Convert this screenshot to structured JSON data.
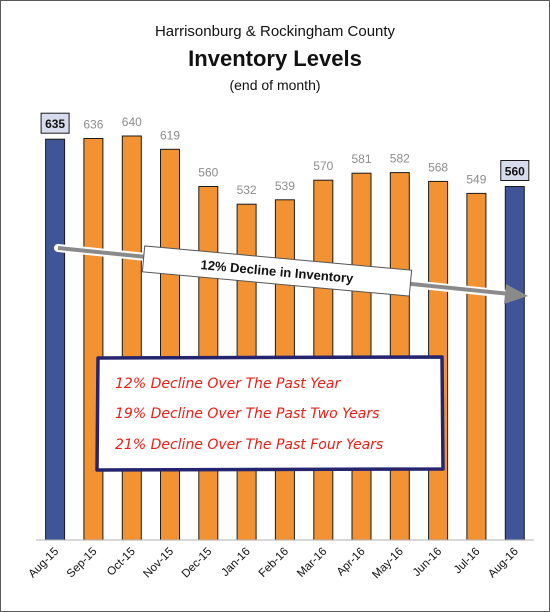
{
  "chart_data": {
    "type": "bar",
    "title_line1": "Harrisonburg & Rockingham County",
    "title": "Inventory Levels",
    "subtitle": "(end of month)",
    "categories": [
      "Aug-15",
      "Sep-15",
      "Oct-15",
      "Nov-15",
      "Dec-15",
      "Jan-16",
      "Feb-16",
      "Mar-16",
      "Apr-16",
      "May-16",
      "Jun-16",
      "Jul-16",
      "Aug-16"
    ],
    "values": [
      635,
      636,
      640,
      619,
      560,
      532,
      539,
      570,
      581,
      582,
      568,
      549,
      560
    ],
    "highlighted": [
      0,
      12
    ],
    "ylim": [
      0,
      700
    ],
    "grid": false,
    "legend": "none",
    "colors": {
      "primary": "#f39233",
      "highlight": "#3f5598",
      "label_muted": "#8c8c8c",
      "handwriting": "#e8201a",
      "box_border": "#2a2a7a"
    },
    "annotations": {
      "trend_label": "12% Decline in Inventory",
      "box_lines": [
        "12% Decline Over The Past Year",
        "19% Decline Over The Past Two Years",
        "21% Decline Over The Past Four Years"
      ]
    }
  }
}
